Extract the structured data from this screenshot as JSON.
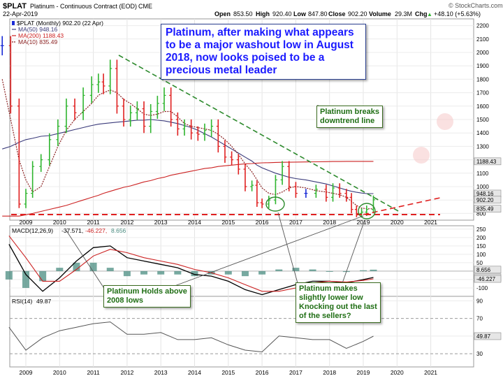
{
  "header": {
    "symbol": "$PLAT",
    "name": "Platinum - Continuous Contract (EOD)",
    "exchange": "CME",
    "date": "22-Apr-2019",
    "open_label": "Open",
    "open": "853.50",
    "high_label": "High",
    "high": "920.40",
    "low_label": "Low",
    "low": "847.80",
    "close_label": "Close",
    "close": "902.20",
    "volume_label": "Volume",
    "volume": "29.3M",
    "change_label": "Chg",
    "change": "+48.10 (+5.63%)",
    "change_arrow": "▲",
    "brand": "© StockCharts.com"
  },
  "price_legend": {
    "main": "$PLAT (Monthly) 902.20 (22 Apr)",
    "ma50": "MA(50) 948.16",
    "ma200": "MA(200) 1188.43",
    "ma10": "MA(10) 835.49"
  },
  "macd_legend": {
    "label": "MACD(12,26,9)",
    "v1": "-37.571,",
    "v2": "-46.227,",
    "v3": "8.656"
  },
  "rsi_legend": {
    "label": "RSI(14)",
    "value": "49.87"
  },
  "annotations": {
    "headline": "Platinum, after making what appears\nto be a major washout low in August\n2018, now looks poised to be a\nprecious metal leader",
    "breaks": "Platinum breaks\ndowntrend line",
    "holds": "Platinum Holds above\n2008 lows",
    "lower_low": "Platinum makes\nslightly lower low\nKnocking out the last\nof the sellers?"
  },
  "colors": {
    "up": "#2fb52f",
    "down": "#e02020",
    "neutral": "#1a2bd6",
    "ma50": "#3a3a7a",
    "ma200": "#cc2222",
    "ma10": "#8a2020",
    "macd": "#000000",
    "signal": "#cc2222",
    "histogram": "#4a8c80",
    "rsi": "#555555",
    "downtrend": "#2d8a2d",
    "support": "#e02020",
    "axis_badge": "#e6e6e6"
  },
  "chart_data": [
    {
      "type": "line",
      "panel": "price",
      "title": "$PLAT (Monthly) 902.20 (22 Apr)",
      "x_ticks": [
        "2009",
        "2010",
        "2011",
        "2012",
        "2013",
        "2014",
        "2015",
        "2016",
        "2017",
        "2018",
        "2019",
        "2020",
        "2021"
      ],
      "ylim": [
        750,
        2250
      ],
      "y_ticks": [
        "2200",
        "2100",
        "2000",
        "1900",
        "1800",
        "1700",
        "1600",
        "1500",
        "1400",
        "1300",
        "1200",
        "1100",
        "1000",
        "900",
        "800"
      ],
      "right_badges": [
        "1188.43",
        "948.16",
        "902.20",
        "835.49"
      ],
      "grid": true,
      "x": [
        2008.3,
        2008.55,
        2008.8,
        2009.0,
        2009.2,
        2009.45,
        2009.7,
        2009.95,
        2010.2,
        2010.45,
        2010.7,
        2010.95,
        2011.15,
        2011.3,
        2011.5,
        2011.7,
        2011.9,
        2012.1,
        2012.3,
        2012.5,
        2012.7,
        2012.9,
        2013.1,
        2013.3,
        2013.5,
        2013.7,
        2013.9,
        2014.1,
        2014.3,
        2014.5,
        2014.7,
        2014.9,
        2015.1,
        2015.3,
        2015.5,
        2015.7,
        2015.85,
        2016.0,
        2016.2,
        2016.4,
        2016.6,
        2016.8,
        2017.0,
        2017.3,
        2017.6,
        2017.9,
        2018.1,
        2018.3,
        2018.5,
        2018.65,
        2018.8,
        2018.95,
        2019.1,
        2019.3
      ],
      "series": [
        {
          "name": "$PLAT",
          "values": [
            2050,
            1600,
            870,
            950,
            1150,
            1200,
            1350,
            1450,
            1600,
            1550,
            1680,
            1760,
            1780,
            1750,
            1880,
            1600,
            1500,
            1550,
            1580,
            1450,
            1560,
            1620,
            1680,
            1500,
            1430,
            1450,
            1400,
            1390,
            1420,
            1450,
            1300,
            1220,
            1200,
            1130,
            1000,
            1010,
            880,
            870,
            900,
            1050,
            1150,
            1000,
            950,
            950,
            980,
            920,
            990,
            950,
            920,
            830,
            800,
            810,
            830,
            902
          ]
        },
        {
          "name": "MA(50)",
          "values": [
            1280,
            1300,
            1330,
            1350,
            1360,
            1375,
            1380,
            1395,
            1410,
            1425,
            1440,
            1455,
            1465,
            1470,
            1475,
            1480,
            1485,
            1490,
            1495,
            1495,
            1500,
            1495,
            1490,
            1480,
            1470,
            1455,
            1440,
            1420,
            1395,
            1370,
            1340,
            1310,
            1280,
            1250,
            1220,
            1190,
            1160,
            1140,
            1120,
            1100,
            1085,
            1070,
            1060,
            1050,
            1035,
            1020,
            1005,
            990,
            975,
            965,
            958,
            952,
            948,
            948
          ]
        },
        {
          "name": "MA(200)",
          "values": [
            780,
            780,
            780,
            790,
            800,
            815,
            830,
            845,
            860,
            880,
            900,
            920,
            935,
            950,
            965,
            980,
            995,
            1005,
            1020,
            1035,
            1045,
            1060,
            1070,
            1085,
            1095,
            1105,
            1115,
            1125,
            1135,
            1140,
            1150,
            1155,
            1160,
            1165,
            1170,
            1172,
            1175,
            1177,
            1178,
            1180,
            1181,
            1182,
            1183,
            1184,
            1185,
            1186,
            1187,
            1187,
            1188,
            1188,
            1188,
            1188,
            1188,
            1188
          ]
        },
        {
          "name": "MA(10)",
          "values": [
            1800,
            1500,
            1200,
            1050,
            960,
            1000,
            1150,
            1300,
            1420,
            1500,
            1560,
            1620,
            1680,
            1700,
            1720,
            1700,
            1650,
            1620,
            1580,
            1540,
            1530,
            1540,
            1560,
            1560,
            1520,
            1470,
            1450,
            1440,
            1430,
            1420,
            1390,
            1350,
            1300,
            1240,
            1170,
            1110,
            1050,
            990,
            950,
            940,
            960,
            990,
            1000,
            990,
            970,
            960,
            950,
            940,
            920,
            890,
            860,
            840,
            835,
            835
          ]
        }
      ]
    },
    {
      "type": "line",
      "panel": "macd",
      "title": "MACD(12,26,9)",
      "ylim": [
        -150,
        270
      ],
      "y_ticks": [
        "250",
        "200",
        "150",
        "100",
        "50",
        "0",
        "-50",
        "-100"
      ],
      "right_badges": [
        "8.656",
        "-37.571",
        "-46.227"
      ],
      "x": [
        2008.5,
        2009.0,
        2009.5,
        2010.0,
        2010.5,
        2011.0,
        2011.5,
        2012.0,
        2012.5,
        2013.0,
        2013.5,
        2014.0,
        2014.5,
        2015.0,
        2015.5,
        2016.0,
        2016.5,
        2017.0,
        2017.5,
        2018.0,
        2018.5,
        2019.0,
        2019.3
      ],
      "series": [
        {
          "name": "MACD",
          "values": [
            160,
            -20,
            -120,
            -40,
            60,
            140,
            150,
            80,
            60,
            40,
            20,
            -20,
            -30,
            -60,
            -110,
            -140,
            -110,
            -80,
            -60,
            -60,
            -70,
            -50,
            -37.571
          ]
        },
        {
          "name": "Signal",
          "values": [
            210,
            80,
            -60,
            -60,
            10,
            90,
            130,
            110,
            80,
            60,
            40,
            10,
            -10,
            -40,
            -80,
            -120,
            -120,
            -100,
            -70,
            -60,
            -65,
            -55,
            -46.227
          ]
        },
        {
          "name": "Histogram",
          "values": [
            -50,
            -100,
            -60,
            20,
            50,
            50,
            20,
            -30,
            -20,
            -20,
            -20,
            -30,
            -20,
            -20,
            -30,
            -20,
            10,
            20,
            10,
            0,
            -5,
            5,
            8.656
          ]
        }
      ]
    },
    {
      "type": "line",
      "panel": "rsi",
      "title": "RSI(14)",
      "ylim": [
        15,
        95
      ],
      "y_ticks": [
        "90",
        "70",
        "50",
        "30"
      ],
      "right_badges": [
        "49.87"
      ],
      "x_ticks": [
        "2009",
        "2010",
        "2011",
        "2012",
        "2013",
        "2014",
        "2015",
        "2016",
        "2017",
        "2018",
        "2019",
        "2020",
        "2021"
      ],
      "x": [
        2008.5,
        2009.0,
        2009.5,
        2010.0,
        2010.5,
        2011.0,
        2011.5,
        2012.0,
        2012.5,
        2013.0,
        2013.5,
        2014.0,
        2014.5,
        2015.0,
        2015.5,
        2016.0,
        2016.5,
        2017.0,
        2017.5,
        2018.0,
        2018.5,
        2019.0,
        2019.3
      ],
      "series": [
        {
          "name": "RSI",
          "values": [
            60,
            34,
            48,
            56,
            60,
            64,
            66,
            52,
            52,
            54,
            46,
            46,
            48,
            40,
            34,
            32,
            50,
            48,
            46,
            46,
            36,
            44,
            49.87
          ]
        }
      ]
    }
  ]
}
